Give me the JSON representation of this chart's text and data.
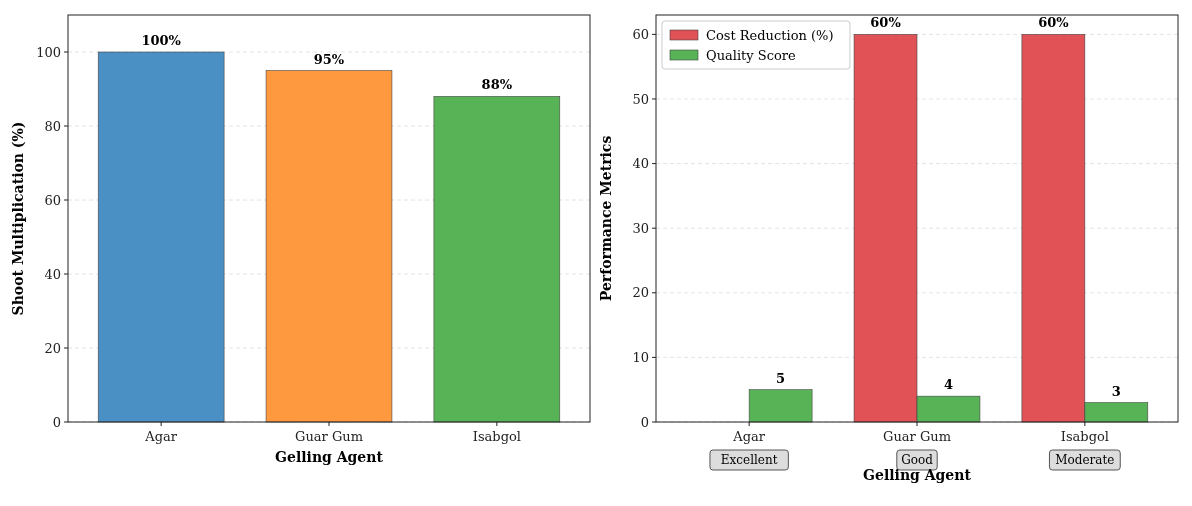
{
  "chart_data": [
    {
      "type": "bar",
      "xlabel": "Gelling Agent",
      "ylabel": "Shoot Multiplication (%)",
      "categories": [
        "Agar",
        "Guar Gum",
        "Isabgol"
      ],
      "values": [
        100,
        95,
        88
      ],
      "colors": [
        "#4a90c4",
        "#ff993f",
        "#57b356"
      ],
      "value_labels": [
        "100%",
        "95%",
        "88%"
      ],
      "ylim": [
        0,
        110
      ],
      "yticks": [
        0,
        20,
        40,
        60,
        80,
        100
      ],
      "grid": "y"
    },
    {
      "type": "bar",
      "xlabel": "Gelling Agent",
      "ylabel": "Performance Metrics",
      "categories": [
        "Agar",
        "Guar Gum",
        "Isabgol"
      ],
      "series": [
        {
          "name": "Cost Reduction (%)",
          "color": "#e05256",
          "values": [
            0,
            60,
            60
          ],
          "value_labels": [
            null,
            "60%",
            "60%"
          ]
        },
        {
          "name": "Quality Score",
          "color": "#57b356",
          "values": [
            5,
            4,
            3
          ],
          "value_labels": [
            "5",
            "4",
            "3"
          ]
        }
      ],
      "annotations": [
        "Excellent",
        "Good",
        "Moderate"
      ],
      "ylim": [
        0,
        63
      ],
      "yticks": [
        0,
        10,
        20,
        30,
        40,
        50,
        60
      ],
      "grid": "y",
      "legend": "top left"
    }
  ]
}
